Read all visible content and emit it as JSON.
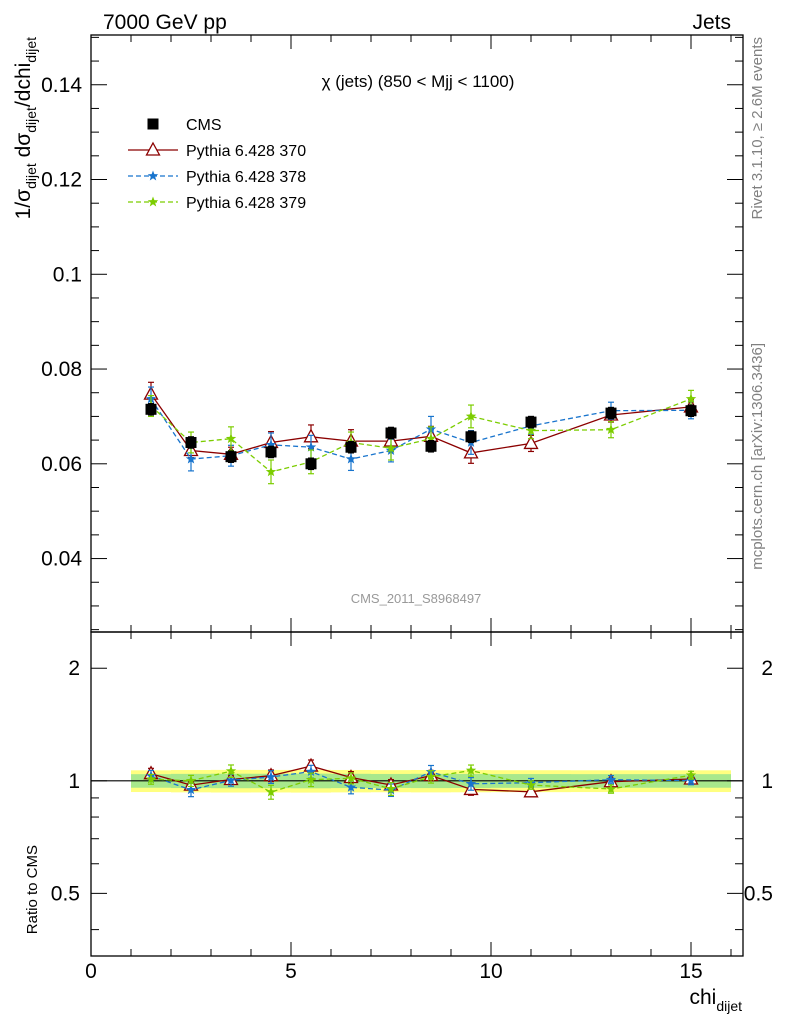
{
  "header": {
    "process": "7000 GeV pp",
    "category": "Jets"
  },
  "side": {
    "rivet": "Rivet 3.1.10, ≥ 2.6M events",
    "mcplots": "mcplots.cern.ch [arXiv:1306.3436]"
  },
  "chart_data": {
    "type": "scatter",
    "title": "χ (jets) (850 < Mjj < 1100)",
    "analysis_id": "CMS_2011_S8968497",
    "xlabel": "chi_dijet",
    "ylabel": "1/σ_dijet dσ_dijet/dchi_dijet",
    "ratio_ylabel": "Ratio to CMS",
    "xlim": [
      0,
      16.3
    ],
    "ylim": [
      0.0245,
      0.1505
    ],
    "ratio_ylim": [
      0.34,
      2.5
    ],
    "ratio_log_scale": true,
    "x_ticks": [
      0,
      5,
      10,
      15
    ],
    "y_ticks": [
      0.04,
      0.06,
      0.08,
      0.1,
      0.12,
      0.14
    ],
    "y_tick_labels": [
      "0.04",
      "0.06",
      "0.08",
      "0.1",
      "0.12",
      "0.14"
    ],
    "ratio_ticks": [
      0.5,
      1,
      2
    ],
    "ratio_tick_labels": [
      "0.5",
      "1",
      "2"
    ],
    "legend_position": "top-left",
    "bins": [
      [
        1,
        2
      ],
      [
        2,
        3
      ],
      [
        3,
        4
      ],
      [
        4,
        5
      ],
      [
        5,
        6
      ],
      [
        6,
        7
      ],
      [
        7,
        8
      ],
      [
        8,
        9
      ],
      [
        9,
        10
      ],
      [
        10,
        12
      ],
      [
        12,
        14
      ],
      [
        14,
        16
      ]
    ],
    "x": [
      1.5,
      2.5,
      3.5,
      4.5,
      5.5,
      6.5,
      7.5,
      8.5,
      9.5,
      11,
      13,
      15
    ],
    "band_inner": [
      0.025,
      0.025,
      0.025,
      0.025,
      0.025,
      0.025,
      0.025,
      0.025,
      0.025,
      0.025,
      0.025,
      0.025
    ],
    "band_outer": [
      0.05,
      0.05,
      0.05,
      0.05,
      0.05,
      0.05,
      0.05,
      0.05,
      0.05,
      0.05,
      0.05,
      0.05
    ],
    "series": [
      {
        "name": "CMS",
        "kind": "data",
        "color": "#000000",
        "values": [
          0.0715,
          0.0645,
          0.0615,
          0.0625,
          0.06,
          0.0635,
          0.0665,
          0.0637,
          0.0657,
          0.0688,
          0.0707,
          0.0712
        ],
        "errors": [
          0.0012,
          0.0012,
          0.0012,
          0.0012,
          0.0012,
          0.0012,
          0.0012,
          0.0012,
          0.0012,
          0.0012,
          0.0012,
          0.0012
        ]
      },
      {
        "name": "Pythia 6.428 370",
        "kind": "mc",
        "color": "#8b0000",
        "marker": "triangle",
        "dash": false,
        "values": [
          0.0747,
          0.0628,
          0.062,
          0.0645,
          0.0657,
          0.0648,
          0.0648,
          0.0658,
          0.0623,
          0.0643,
          0.0703,
          0.072
        ],
        "errors": [
          0.0025,
          0.0015,
          0.0015,
          0.0023,
          0.0025,
          0.0024,
          0.0022,
          0.0021,
          0.0022,
          0.0017,
          0.0015,
          0.0015
        ]
      },
      {
        "name": "Pythia 6.428 378",
        "kind": "mc",
        "color": "#1874cd",
        "marker": "star",
        "dash": true,
        "values": [
          0.0737,
          0.061,
          0.0617,
          0.064,
          0.0635,
          0.061,
          0.0628,
          0.0673,
          0.0645,
          0.068,
          0.0712,
          0.0713
        ],
        "errors": [
          0.0025,
          0.0025,
          0.0022,
          0.0025,
          0.0025,
          0.0024,
          0.0024,
          0.0027,
          0.0025,
          0.0018,
          0.0018,
          0.0018
        ]
      },
      {
        "name": "Pythia 6.428 379",
        "kind": "mc",
        "color": "#7ccd00",
        "marker": "star",
        "dash": true,
        "values": [
          0.0722,
          0.0645,
          0.0653,
          0.0583,
          0.0604,
          0.0645,
          0.0633,
          0.0653,
          0.07,
          0.067,
          0.0672,
          0.0737
        ],
        "errors": [
          0.0022,
          0.0022,
          0.0025,
          0.0025,
          0.0025,
          0.0022,
          0.0025,
          0.0025,
          0.0024,
          0.0017,
          0.0017,
          0.0018
        ]
      }
    ]
  }
}
